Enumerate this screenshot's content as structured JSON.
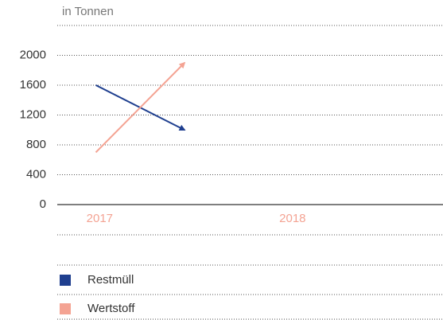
{
  "chart_data": {
    "type": "line",
    "ylabel": "in Tonnen",
    "categories": [
      "2017",
      "2018"
    ],
    "series": [
      {
        "name": "Restmüll",
        "color": "#1f3f8f",
        "values": [
          1600,
          1000
        ]
      },
      {
        "name": "Wertstoff",
        "color": "#f4a393",
        "values": [
          700,
          1900
        ]
      }
    ],
    "ylim": [
      0,
      2400
    ],
    "yticks": [
      0,
      400,
      800,
      1200,
      1600,
      2000
    ],
    "grid": true,
    "category_color": "#f4a393"
  }
}
